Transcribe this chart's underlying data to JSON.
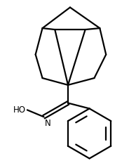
{
  "background_color": "#ffffff",
  "line_color": "#000000",
  "line_width": 1.6,
  "text_color": "#000000",
  "fig_width": 1.94,
  "fig_height": 2.3,
  "dpi": 100,
  "ho_text": "HO",
  "n_text": "N",
  "font_size": 8.5
}
